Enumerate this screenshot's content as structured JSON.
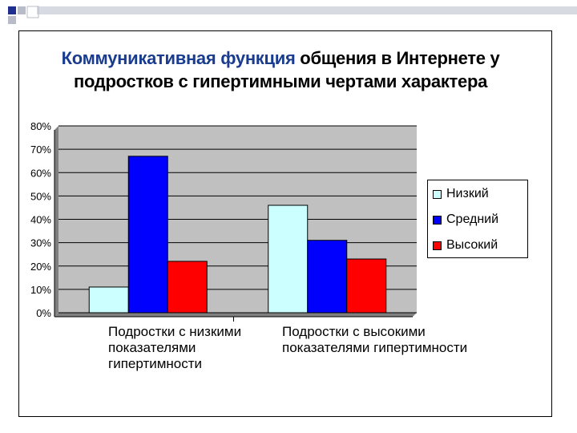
{
  "slide": {
    "title_highlight": "Коммуникативная функция",
    "title_rest_line1": " общения в Интернете у",
    "title_line2": "подростков с гипертимными чертами характера"
  },
  "colors": {
    "title_highlight": "#1a3c8e",
    "plot_background": "#c0c0c0",
    "decor_blue": "#1f2f8f",
    "decor_gray": "#b8bcc8"
  },
  "chart_data": {
    "type": "bar",
    "title": "Коммуникативная функция общения в Интернете у подростков с гипертимными чертами характера",
    "categories": [
      "Подростки с низкими показателями гипертимности",
      "Подростки с высокими показателями гипертимности"
    ],
    "category_lines": [
      [
        "Подростки с низкими",
        "показателями",
        "гипертимности"
      ],
      [
        "Подростки с высокими",
        "показателями гипертимности"
      ]
    ],
    "series": [
      {
        "name": "Низкий",
        "color": "#ccffff",
        "values": [
          11,
          46
        ]
      },
      {
        "name": "Средний",
        "color": "#0000ff",
        "values": [
          67,
          31
        ]
      },
      {
        "name": "Высокий",
        "color": "#ff0000",
        "values": [
          22,
          23
        ]
      }
    ],
    "ylim": [
      0,
      80
    ],
    "yticks": [
      "0%",
      "10%",
      "20%",
      "30%",
      "40%",
      "50%",
      "60%",
      "70%",
      "80%"
    ],
    "unit": "%",
    "grid": true,
    "legend_position": "right"
  }
}
